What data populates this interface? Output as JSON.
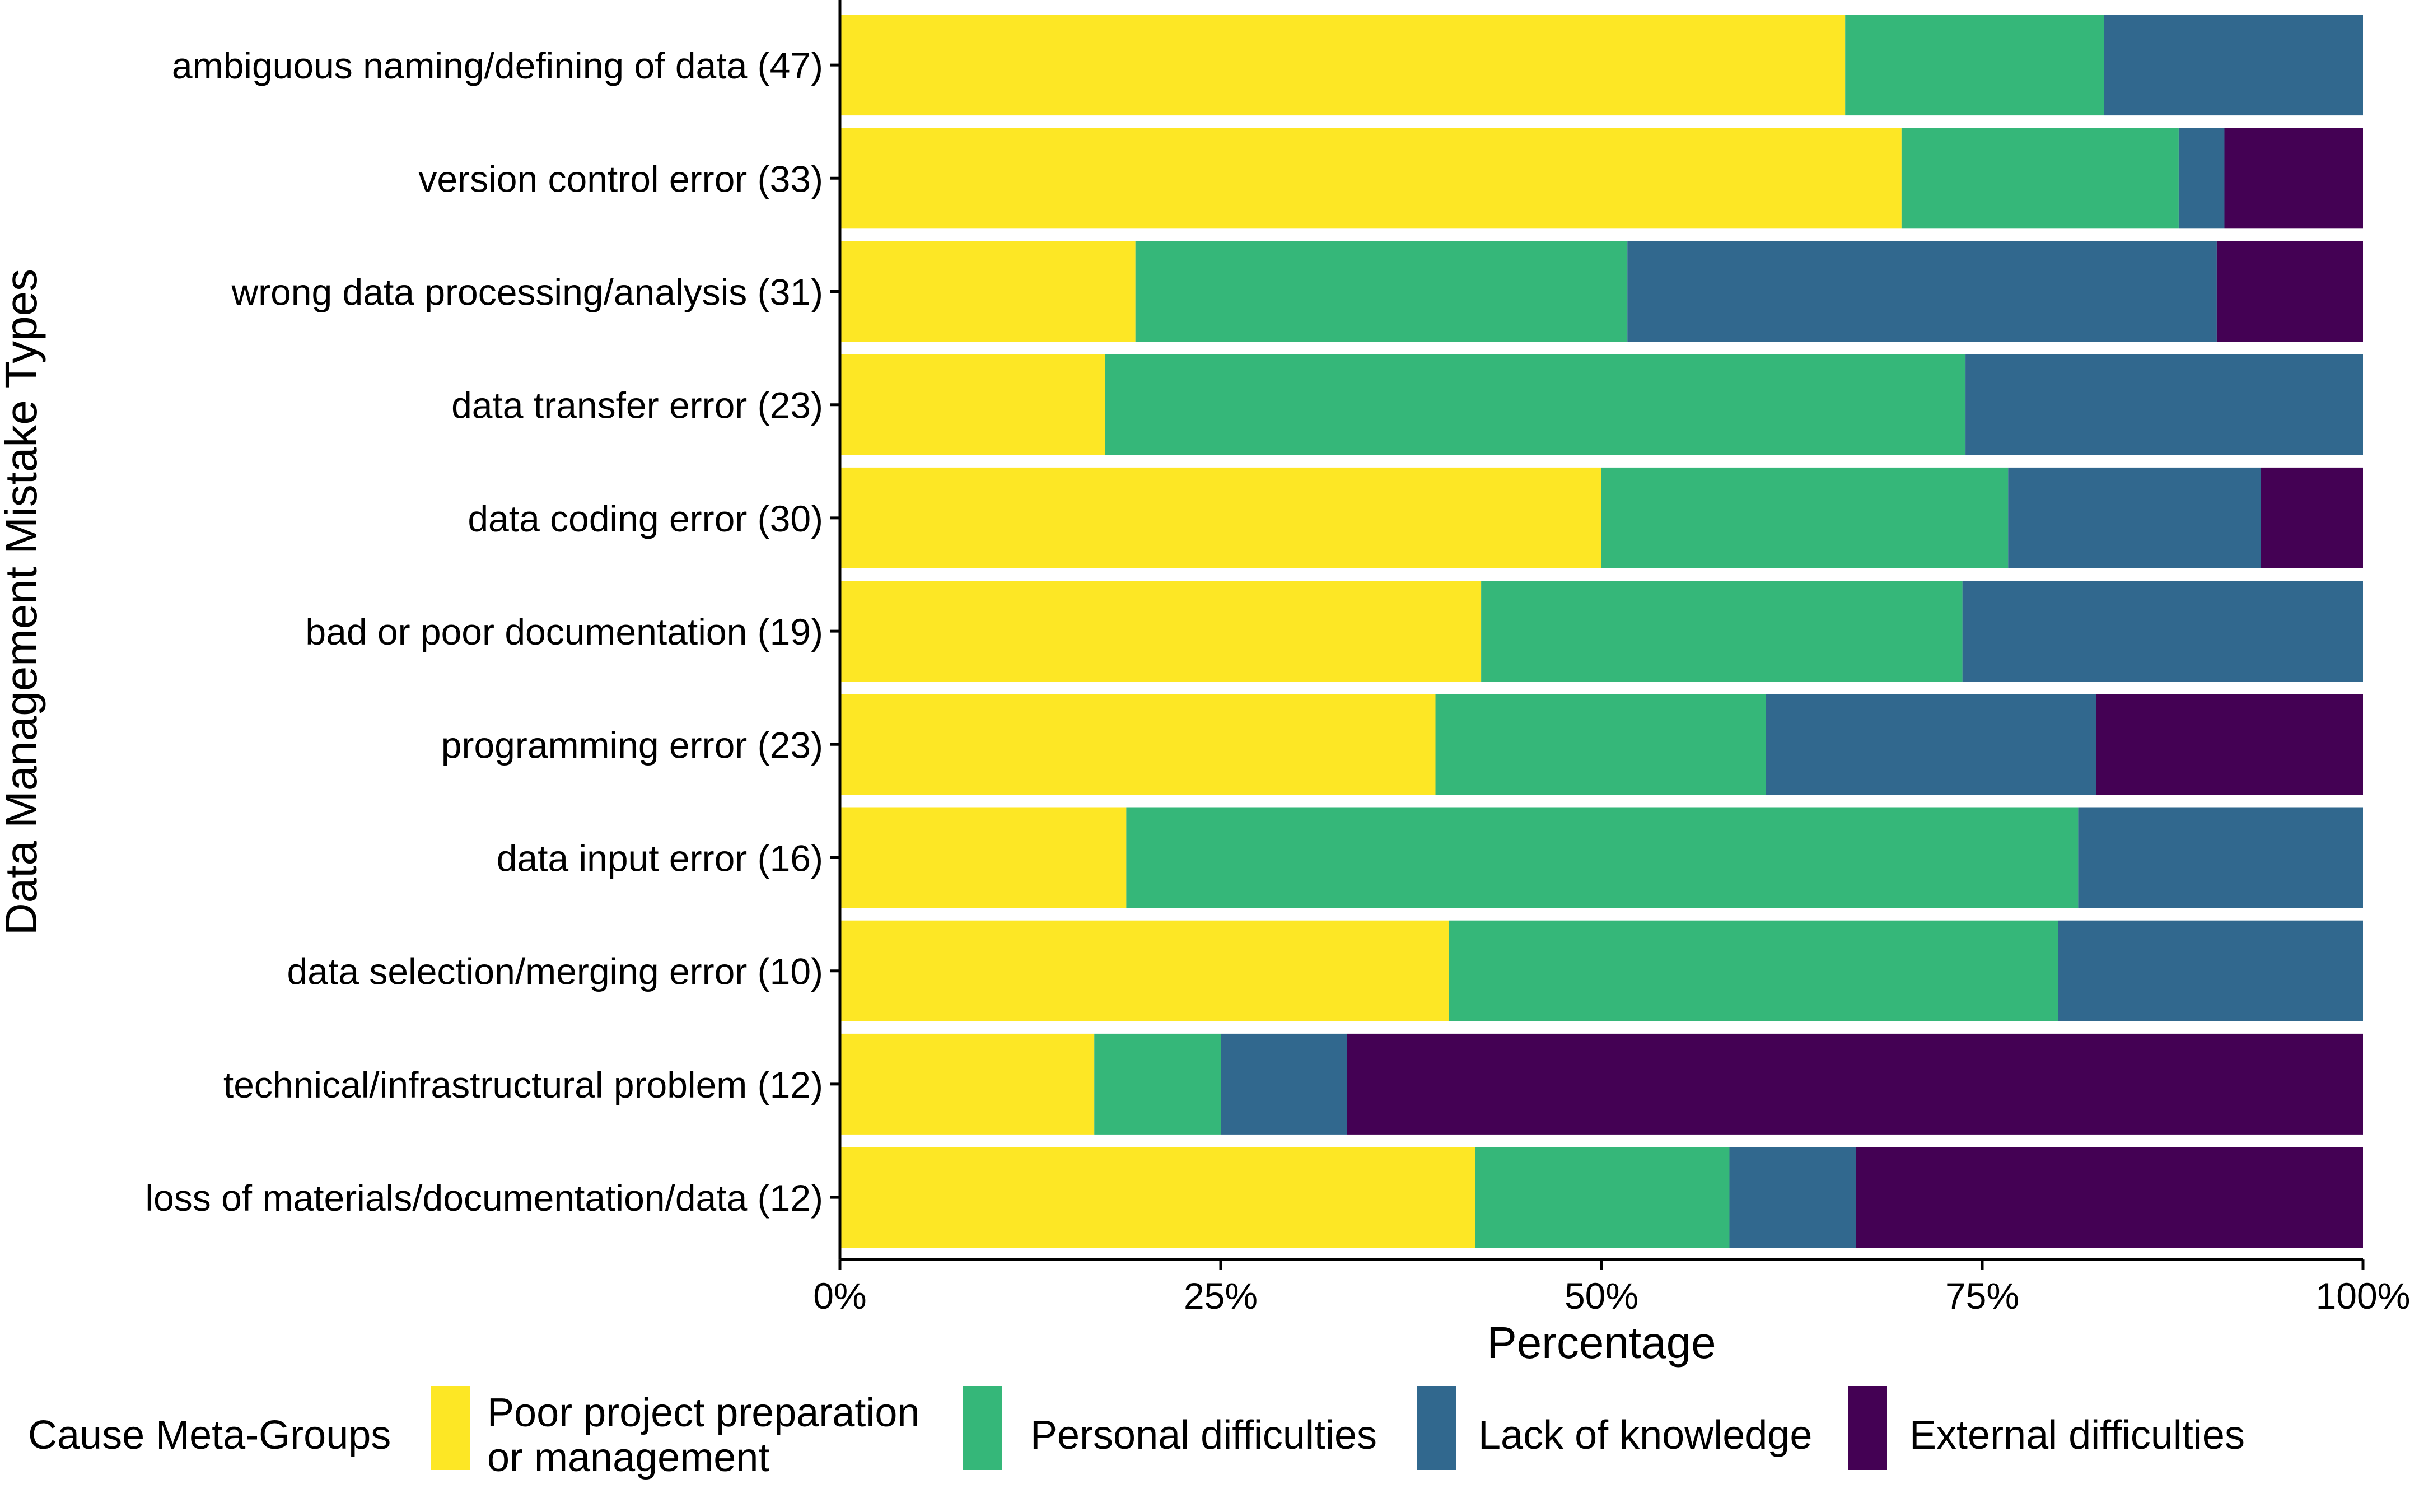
{
  "chart_data": {
    "type": "bar",
    "orientation": "horizontal",
    "stacked": "percent",
    "categories": [
      "ambiguous naming/defining of data (47)",
      "version control error (33)",
      "wrong data processing/analysis (31)",
      "data transfer error (23)",
      "data coding error (30)",
      "bad or poor documentation (19)",
      "programming error (23)",
      "data input error (16)",
      "data selection/merging error (10)",
      "technical/infrastructural problem (12)",
      "loss of materials/documentation/data (12)"
    ],
    "series": [
      {
        "name": "Poor project preparation\nor management",
        "color": "#FDE725",
        "values": [
          66,
          69.7,
          19.4,
          17.4,
          50,
          42.1,
          39.1,
          18.8,
          40,
          16.7,
          41.7
        ]
      },
      {
        "name": "Personal difficulties",
        "color": "#35B779",
        "values": [
          17,
          18.2,
          32.3,
          56.5,
          26.7,
          31.6,
          21.7,
          62.5,
          40,
          8.3,
          16.7
        ]
      },
      {
        "name": "Lack of knowledge",
        "color": "#31688E",
        "values": [
          17,
          3,
          38.7,
          26.1,
          16.6,
          26.3,
          21.7,
          18.7,
          20,
          8.3,
          8.3
        ]
      },
      {
        "name": "External difficulties",
        "color": "#440154",
        "values": [
          0,
          9.1,
          9.6,
          0,
          6.7,
          0,
          17.5,
          0,
          0,
          66.7,
          33.3
        ]
      }
    ],
    "xlabel": "Percentage",
    "ylabel": "Data Management Mistake Types",
    "xlim": [
      0,
      100
    ],
    "xticks": [
      0,
      25,
      50,
      75,
      100
    ],
    "xtick_labels": [
      "0%",
      "25%",
      "50%",
      "75%",
      "100%"
    ],
    "legend_title": "Cause Meta-Groups",
    "legend_position": "bottom",
    "grid": false
  }
}
